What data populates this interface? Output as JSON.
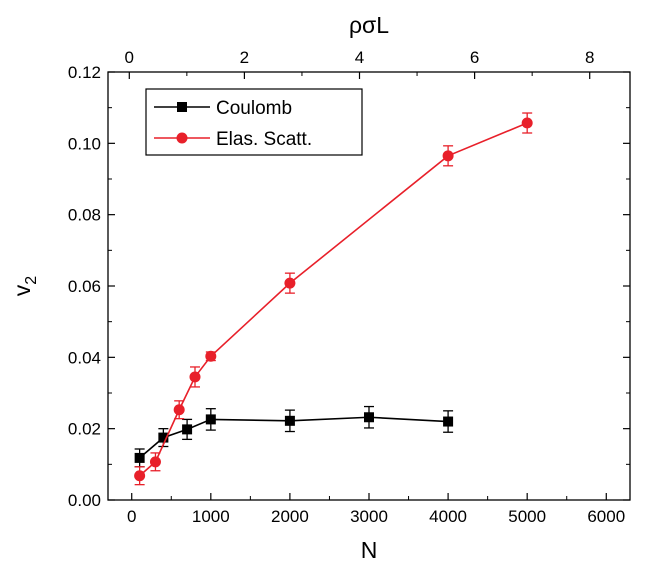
{
  "chart_data": {
    "type": "line",
    "xlabel": "N",
    "ylabel": "v",
    "ylabel_subscript": "2",
    "top_xlabel": "ρσL",
    "xlim": [
      -300,
      6300
    ],
    "ylim": [
      0.0,
      0.12
    ],
    "top_xlim": [
      -0.37,
      8.7
    ],
    "x_ticks": [
      0,
      1000,
      2000,
      3000,
      4000,
      5000,
      6000
    ],
    "x_tick_labels": [
      "0",
      "1000",
      "2000",
      "3000",
      "4000",
      "5000",
      "6000"
    ],
    "y_ticks": [
      0.0,
      0.02,
      0.04,
      0.06,
      0.08,
      0.1,
      0.12
    ],
    "y_tick_labels": [
      "0.00",
      "0.02",
      "0.04",
      "0.06",
      "0.08",
      "0.10",
      "0.12"
    ],
    "top_ticks": [
      0,
      2,
      4,
      6,
      8
    ],
    "top_tick_labels": [
      "0",
      "2",
      "4",
      "6",
      "8"
    ],
    "grid": false,
    "legend_position": "top-left",
    "series": [
      {
        "name": "Coulomb",
        "color": "#000000",
        "marker": "square",
        "x": [
          100,
          400,
          700,
          1000,
          2000,
          3000,
          4000
        ],
        "y": [
          0.0118,
          0.0175,
          0.0198,
          0.0226,
          0.0222,
          0.0232,
          0.022
        ],
        "yerr": [
          0.0025,
          0.0025,
          0.0028,
          0.003,
          0.003,
          0.003,
          0.003
        ]
      },
      {
        "name": "Elas. Scatt.",
        "color": "#e8202a",
        "marker": "circle",
        "x": [
          100,
          300,
          600,
          800,
          1000,
          2000,
          4000,
          5000
        ],
        "y": [
          0.0068,
          0.0107,
          0.0253,
          0.0345,
          0.0403,
          0.0608,
          0.0965,
          0.1057
        ],
        "yerr": [
          0.0025,
          0.0025,
          0.0025,
          0.0028,
          0.0012,
          0.0028,
          0.0028,
          0.0028
        ]
      }
    ]
  }
}
